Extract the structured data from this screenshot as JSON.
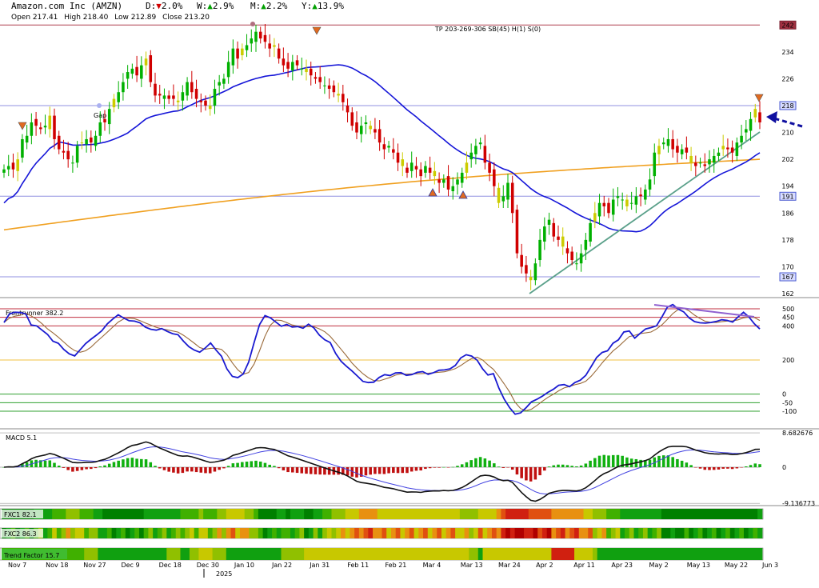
{
  "header": {
    "company": "Amazon.com Inc (AMZN)",
    "d_label": "D:",
    "d_arrow": "▼",
    "d_value": "2.0%",
    "w_label": "W:",
    "w_arrow": "▲",
    "w_value": "2.9%",
    "m_label": "M:",
    "m_arrow": "▲",
    "m_value": "2.2%",
    "y_label": "Y:",
    "y_arrow": "▲",
    "y_value": "13.9%"
  },
  "ohlc": {
    "open": "Open 217.41",
    "high": "High 218.40",
    "low": "Low 212.89",
    "close": "Close 213.20"
  },
  "colors": {
    "up": "#00b000",
    "down": "#d00000",
    "neutral": "#cccc00",
    "sma_fast": "#1515d8",
    "sma_slow": "#f0a020",
    "trendline": "#5aa08a",
    "level": "#9090e0",
    "indicator": "#1a1ad0",
    "signal": "#9a6a3a",
    "hist_up": "#10b010",
    "hist_down": "#c01010"
  },
  "chart_data": [
    {
      "type": "candlestick",
      "name": "price",
      "ylim": [
        160,
        244
      ],
      "y_ticks": [
        "162",
        "170",
        "178",
        "186",
        "194",
        "202",
        "210",
        "218",
        "226",
        "234"
      ],
      "level_tags": [
        "242",
        "218",
        "191",
        "167"
      ],
      "levels": [
        242,
        218,
        191,
        167
      ],
      "top_label": "TP 203-269-306 SB(45) H(1) S(0)",
      "annotations": [
        "Gap"
      ],
      "x_labels": [
        "Nov 7",
        "Nov 18",
        "Nov 27",
        "Dec 9",
        "Dec 18",
        "Dec 30",
        "Jan 10",
        "Jan 22",
        "Jan 31",
        "Feb 11",
        "Feb 21",
        "Mar 4",
        "Mar 13",
        "Mar 24",
        "Apr 2",
        "Apr 11",
        "Apr 23",
        "May 2",
        "May 13",
        "May 22",
        "Jun 3"
      ],
      "year_label": "2025",
      "close": [
        199,
        200,
        199,
        202,
        208,
        209,
        213,
        212,
        211,
        212,
        215,
        208,
        205,
        204,
        202,
        201,
        206,
        207,
        208,
        207,
        209,
        213,
        213,
        217,
        220,
        222,
        225,
        228,
        229,
        227,
        230,
        232,
        225,
        221,
        221,
        221,
        220,
        220,
        219,
        222,
        225,
        222,
        220,
        219,
        218,
        218,
        223,
        225,
        226,
        231,
        235,
        232,
        235,
        236,
        238,
        240,
        238,
        237,
        235,
        236,
        232,
        230,
        229,
        231,
        230,
        229,
        228,
        227,
        226,
        225,
        224,
        223,
        222,
        221,
        219,
        216,
        212,
        210,
        212,
        213,
        211,
        210,
        207,
        205,
        206,
        204,
        201,
        200,
        198,
        201,
        199,
        197,
        200,
        198,
        197,
        195,
        196,
        193,
        194,
        196,
        198,
        201,
        204,
        206,
        207,
        201,
        198,
        194,
        189,
        191,
        195,
        186,
        174,
        170,
        168,
        166,
        171,
        178,
        182,
        184,
        179,
        178,
        176,
        174,
        172,
        171,
        174,
        178,
        183,
        186,
        189,
        188,
        186,
        190,
        191,
        190,
        188,
        189,
        191,
        191,
        193,
        196,
        204,
        206,
        207,
        208,
        205,
        204,
        205,
        204,
        201,
        200,
        201,
        200,
        202,
        203,
        204,
        206,
        205,
        204,
        207,
        209,
        211,
        214,
        217,
        213
      ]
    },
    {
      "type": "line",
      "name": "Frontrunner",
      "label": "Frontrunner 382.2",
      "ylim": [
        -160,
        560
      ],
      "y_ticks": [
        "500",
        "450",
        "400",
        "200",
        "0",
        "-50",
        "-100"
      ],
      "y_tick_values": [
        500,
        450,
        400,
        200,
        0,
        -50,
        -100
      ],
      "values": [
        420,
        470,
        480,
        478,
        470,
        405,
        400,
        375,
        350,
        310,
        298,
        262,
        236,
        224,
        260,
        296,
        322,
        346,
        372,
        412,
        440,
        465,
        446,
        430,
        428,
        418,
        392,
        380,
        375,
        384,
        368,
        354,
        348,
        310,
        278,
        258,
        246,
        270,
        300,
        258,
        222,
        148,
        104,
        97,
        118,
        188,
        302,
        407,
        460,
        447,
        422,
        398,
        408,
        393,
        396,
        386,
        410,
        388,
        346,
        318,
        302,
        238,
        192,
        163,
        136,
        106,
        75,
        68,
        70,
        98,
        114,
        109,
        124,
        126,
        110,
        114,
        128,
        132,
        116,
        126,
        140,
        142,
        148,
        168,
        212,
        231,
        223,
        199,
        149,
        112,
        120,
        36,
        -30,
        -80,
        -118,
        -110,
        -80,
        -45,
        -30,
        -12,
        10,
        28,
        52,
        56,
        44,
        68,
        82,
        110,
        162,
        215,
        244,
        254,
        298,
        318,
        364,
        370,
        328,
        356,
        382,
        390,
        400,
        452,
        510,
        525,
        498,
        482,
        447,
        425,
        418,
        416,
        420,
        426,
        436,
        432,
        422,
        452,
        480,
        452,
        412,
        382
      ]
    },
    {
      "type": "line",
      "name": "MACD",
      "label": "MACD 5.1",
      "ylim": [
        -10.5,
        10.5
      ],
      "y_ticks": [
        "8.682676",
        "0",
        "-9.136773"
      ],
      "y_tick_values": [
        8.682676,
        0,
        -9.136773
      ]
    },
    {
      "type": "heatmap",
      "name": "FXC1",
      "label": "FXC1 82.1"
    },
    {
      "type": "heatmap",
      "name": "FXC2",
      "label": "FXC2 86.3"
    },
    {
      "type": "heatmap",
      "name": "Trend Factor",
      "label": "Trend Factor 15.7"
    }
  ]
}
